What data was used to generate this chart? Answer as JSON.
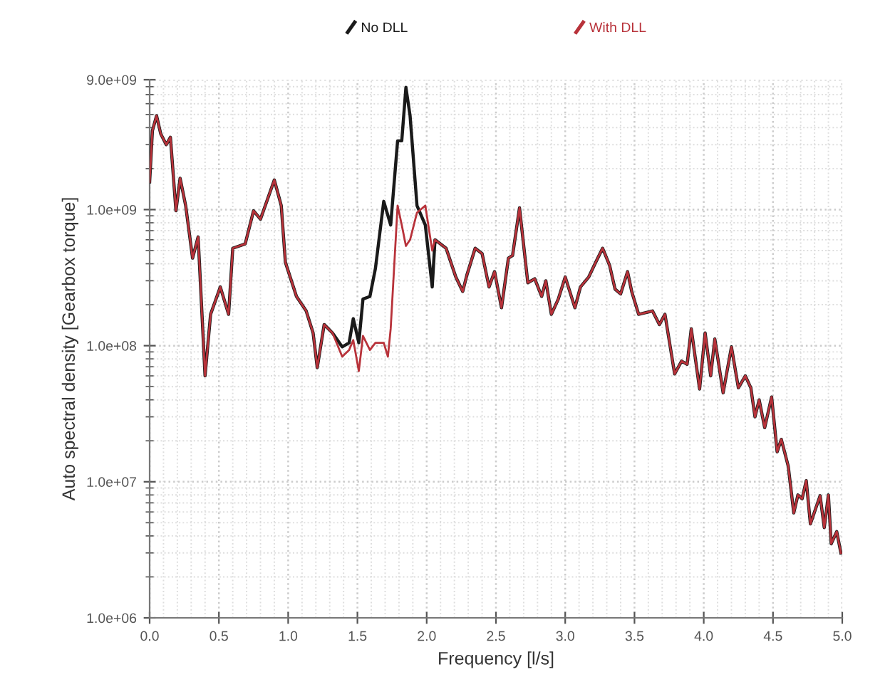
{
  "chart_data": {
    "type": "line",
    "xlabel": "Frequency [l/s]",
    "ylabel": "Auto spectral density [Gearbox torque]",
    "log": "y",
    "grid": true,
    "legend": "top",
    "line_style": "solid",
    "marker": "none",
    "xlim": [
      0,
      5
    ],
    "xticks": [
      {
        "value": 0,
        "label": "0.0"
      },
      {
        "value": 0.5,
        "label": "0.5"
      },
      {
        "value": 1,
        "label": "1.0"
      },
      {
        "value": 1.5,
        "label": "1.5"
      },
      {
        "value": 2,
        "label": "2.0"
      },
      {
        "value": 2.5,
        "label": "2.5"
      },
      {
        "value": 3,
        "label": "3.0"
      },
      {
        "value": 3.5,
        "label": "3.5"
      },
      {
        "value": 4,
        "label": "4.0"
      },
      {
        "value": 4.5,
        "label": "4.5"
      },
      {
        "value": 5,
        "label": "5.0"
      }
    ],
    "ylim": [
      1000000,
      9000000000
    ],
    "yticks": [
      {
        "value": 1000000,
        "label": "1.0e+06"
      },
      {
        "value": 10000000,
        "label": "1.0e+07"
      },
      {
        "value": 100000000,
        "label": "1.0e+08"
      },
      {
        "value": 1000000000,
        "label": "1.0e+09"
      },
      {
        "value": 9000000000,
        "label": "9.0e+09"
      }
    ],
    "series": [
      {
        "name": "No DLL",
        "color": "#1a1a1a",
        "x": [
          0.0,
          0.02,
          0.05,
          0.08,
          0.12,
          0.15,
          0.19,
          0.22,
          0.26,
          0.31,
          0.35,
          0.4,
          0.44,
          0.51,
          0.57,
          0.6,
          0.69,
          0.75,
          0.8,
          0.9,
          0.95,
          0.98,
          1.06,
          1.13,
          1.18,
          1.21,
          1.26,
          1.32,
          1.39,
          1.44,
          1.47,
          1.51,
          1.54,
          1.59,
          1.63,
          1.69,
          1.74,
          1.79,
          1.82,
          1.85,
          1.88,
          1.93,
          1.99,
          2.04,
          2.06,
          2.14,
          2.21,
          2.26,
          2.29,
          2.35,
          2.4,
          2.45,
          2.49,
          2.54,
          2.59,
          2.62,
          2.67,
          2.73,
          2.78,
          2.83,
          2.86,
          2.9,
          2.95,
          3.0,
          3.07,
          3.11,
          3.17,
          3.22,
          3.27,
          3.32,
          3.36,
          3.4,
          3.45,
          3.48,
          3.53,
          3.63,
          3.68,
          3.72,
          3.79,
          3.84,
          3.88,
          3.91,
          3.97,
          4.01,
          4.05,
          4.08,
          4.14,
          4.2,
          4.25,
          4.3,
          4.34,
          4.37,
          4.4,
          4.44,
          4.49,
          4.53,
          4.56,
          4.61,
          4.65,
          4.68,
          4.71,
          4.74,
          4.77,
          4.84,
          4.87,
          4.9,
          4.92,
          4.96,
          4.99
        ],
        "values": [
          1600000000.0,
          3800000000.0,
          4900000000.0,
          3600000000.0,
          3000000000.0,
          3400000000.0,
          980000000.0,
          1700000000.0,
          1070000000.0,
          440000000.0,
          630000000.0,
          60000000.0,
          170000000.0,
          270000000.0,
          170000000.0,
          520000000.0,
          560000000.0,
          980000000.0,
          850000000.0,
          1650000000.0,
          1070000000.0,
          410000000.0,
          230000000.0,
          180000000.0,
          124000000.0,
          69000000.0,
          143000000.0,
          124000000.0,
          98000000.0,
          105000000.0,
          158000000.0,
          105000000.0,
          220000000.0,
          230000000.0,
          370000000.0,
          1150000000.0,
          770000000.0,
          3200000000.0,
          3200000000.0,
          7900000000.0,
          4900000000.0,
          1070000000.0,
          770000000.0,
          270000000.0,
          600000000.0,
          520000000.0,
          320000000.0,
          250000000.0,
          330000000.0,
          520000000.0,
          475000000.0,
          270000000.0,
          350000000.0,
          190000000.0,
          440000000.0,
          460000000.0,
          1030000000.0,
          290000000.0,
          310000000.0,
          230000000.0,
          300000000.0,
          170000000.0,
          220000000.0,
          320000000.0,
          190000000.0,
          270000000.0,
          320000000.0,
          410000000.0,
          520000000.0,
          390000000.0,
          260000000.0,
          240000000.0,
          350000000.0,
          250000000.0,
          170000000.0,
          180000000.0,
          143000000.0,
          170000000.0,
          62000000.0,
          77000000.0,
          73000000.0,
          133000000.0,
          48000000.0,
          124000000.0,
          60000000.0,
          112000000.0,
          45000000.0,
          98000000.0,
          49000000.0,
          60000000.0,
          49000000.0,
          30000000.0,
          40000000.0,
          25000000.0,
          42000000.0,
          16600000.0,
          20500000.0,
          13000000.0,
          5900000.0,
          8000000.0,
          7500000.0,
          10200000.0,
          4900000.0,
          7900000.0,
          4600000.0,
          8000000.0,
          3500000.0,
          4300000.0,
          3000000.0
        ]
      },
      {
        "name": "With DLL",
        "color": "#b8323a",
        "x": [
          0.0,
          0.02,
          0.05,
          0.08,
          0.12,
          0.15,
          0.19,
          0.22,
          0.26,
          0.31,
          0.35,
          0.4,
          0.44,
          0.51,
          0.57,
          0.6,
          0.69,
          0.75,
          0.8,
          0.9,
          0.95,
          0.98,
          1.06,
          1.13,
          1.18,
          1.21,
          1.26,
          1.32,
          1.39,
          1.44,
          1.47,
          1.51,
          1.54,
          1.59,
          1.63,
          1.69,
          1.72,
          1.74,
          1.79,
          1.82,
          1.85,
          1.88,
          1.93,
          1.99,
          2.04,
          2.06,
          2.14,
          2.21,
          2.26,
          2.29,
          2.35,
          2.4,
          2.45,
          2.49,
          2.54,
          2.59,
          2.62,
          2.67,
          2.73,
          2.78,
          2.83,
          2.86,
          2.9,
          2.95,
          3.0,
          3.07,
          3.11,
          3.17,
          3.22,
          3.27,
          3.32,
          3.36,
          3.4,
          3.45,
          3.48,
          3.53,
          3.63,
          3.68,
          3.72,
          3.79,
          3.84,
          3.88,
          3.91,
          3.97,
          4.01,
          4.05,
          4.08,
          4.14,
          4.2,
          4.25,
          4.3,
          4.34,
          4.37,
          4.4,
          4.44,
          4.49,
          4.53,
          4.56,
          4.61,
          4.65,
          4.68,
          4.71,
          4.74,
          4.77,
          4.84,
          4.87,
          4.9,
          4.92,
          4.96,
          4.99
        ],
        "values": [
          1600000000.0,
          3800000000.0,
          4900000000.0,
          3600000000.0,
          3000000000.0,
          3400000000.0,
          980000000.0,
          1700000000.0,
          1070000000.0,
          440000000.0,
          630000000.0,
          60000000.0,
          170000000.0,
          270000000.0,
          170000000.0,
          520000000.0,
          560000000.0,
          980000000.0,
          850000000.0,
          1650000000.0,
          1070000000.0,
          410000000.0,
          230000000.0,
          180000000.0,
          124000000.0,
          69000000.0,
          143000000.0,
          124000000.0,
          83000000.0,
          93000000.0,
          110000000.0,
          65000000.0,
          118000000.0,
          93000000.0,
          105000000.0,
          105000000.0,
          83000000.0,
          133000000.0,
          1070000000.0,
          770000000.0,
          540000000.0,
          600000000.0,
          950000000.0,
          1070000000.0,
          500000000.0,
          600000000.0,
          520000000.0,
          320000000.0,
          250000000.0,
          330000000.0,
          520000000.0,
          475000000.0,
          270000000.0,
          350000000.0,
          190000000.0,
          440000000.0,
          460000000.0,
          1030000000.0,
          290000000.0,
          310000000.0,
          230000000.0,
          300000000.0,
          170000000.0,
          220000000.0,
          320000000.0,
          190000000.0,
          270000000.0,
          320000000.0,
          410000000.0,
          520000000.0,
          390000000.0,
          260000000.0,
          240000000.0,
          350000000.0,
          250000000.0,
          170000000.0,
          180000000.0,
          143000000.0,
          170000000.0,
          62000000.0,
          77000000.0,
          73000000.0,
          133000000.0,
          48000000.0,
          124000000.0,
          60000000.0,
          112000000.0,
          45000000.0,
          98000000.0,
          49000000.0,
          60000000.0,
          49000000.0,
          30000000.0,
          40000000.0,
          25000000.0,
          42000000.0,
          16600000.0,
          20500000.0,
          13000000.0,
          5900000.0,
          8000000.0,
          7500000.0,
          10200000.0,
          4900000.0,
          7900000.0,
          4600000.0,
          8000000.0,
          3500000.0,
          4300000.0,
          3000000.0
        ]
      }
    ]
  }
}
